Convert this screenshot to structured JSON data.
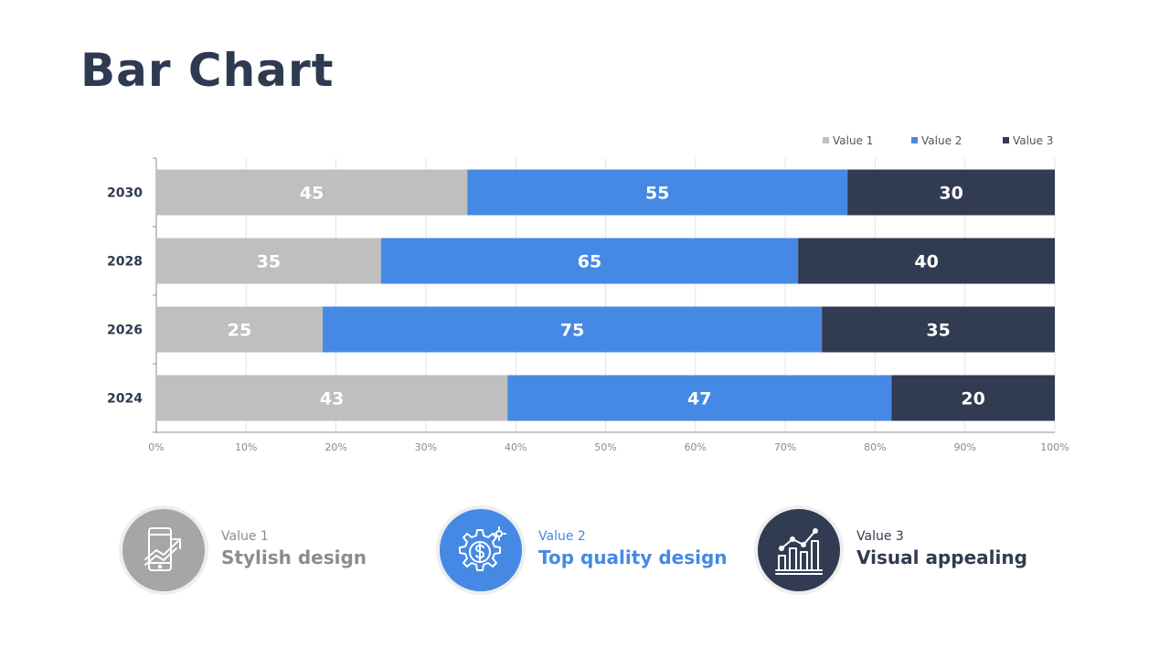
{
  "page": {
    "title": "Bar Chart"
  },
  "chart_data": {
    "type": "bar",
    "orientation": "horizontal",
    "stacked": "percent",
    "categories": [
      "2030",
      "2028",
      "2026",
      "2024"
    ],
    "series": [
      {
        "name": "Value 1",
        "values": [
          45,
          35,
          25,
          43
        ],
        "color": "#bfbfbf"
      },
      {
        "name": "Value 2",
        "values": [
          55,
          65,
          75,
          47
        ],
        "color": "#4689e4"
      },
      {
        "name": "Value 3",
        "values": [
          30,
          40,
          35,
          20
        ],
        "color": "#313b51"
      }
    ],
    "x_ticks": [
      "0%",
      "10%",
      "20%",
      "30%",
      "40%",
      "50%",
      "60%",
      "70%",
      "80%",
      "90%",
      "100%"
    ],
    "xlim": [
      0,
      100
    ],
    "grid": true,
    "legend": "top-right"
  },
  "features": [
    {
      "small": "Value 1",
      "big": "Stylish design",
      "icon": "phone-growth-icon",
      "color": "#a6a6a6",
      "text_color": "#8c8c8c"
    },
    {
      "small": "Value 2",
      "big": "Top quality design",
      "icon": "gear-dollar-icon",
      "color": "#4689e4",
      "text_color": "#4689e4"
    },
    {
      "small": "Value 3",
      "big": "Visual appealing",
      "icon": "bar-graph-icon",
      "color": "#313b51",
      "text_color": "#313b51"
    }
  ]
}
